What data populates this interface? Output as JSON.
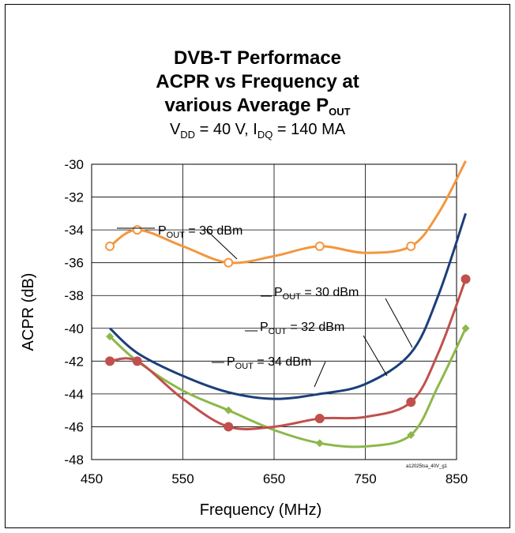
{
  "chart_data": {
    "type": "line",
    "title_lines": [
      "DVB-T Performace",
      "ACPR vs Frequency at",
      "various Average P"
    ],
    "title_sub": "OUT",
    "subtitle": {
      "vdd_main": "V",
      "vdd_sub": "DD",
      "vdd_value": " = 40 V, I",
      "idq_sub": "DQ",
      "idq_value": " = 140 MA"
    },
    "xlabel": "Frequency (MHz)",
    "ylabel": "ACPR (dB)",
    "xlim": [
      450,
      850
    ],
    "ylim": [
      -48,
      -30
    ],
    "x_ticks": [
      450,
      550,
      650,
      750,
      850
    ],
    "x_tick_labels": [
      "450",
      "550",
      "650",
      "750",
      "850"
    ],
    "y_ticks": [
      -30,
      -32,
      -34,
      -36,
      -38,
      -40,
      -42,
      -44,
      -46,
      -48
    ],
    "y_tick_labels": [
      "-30",
      "-32",
      "-34",
      "-36",
      "-38",
      "-40",
      "-42",
      "-44",
      "-46",
      "-48"
    ],
    "grid": true,
    "watermark": "a12025tsa_40V_g1",
    "series": [
      {
        "name": "36 dBm",
        "color": "#f3973e",
        "marker": "open-circle",
        "points": [
          [
            470,
            -35
          ],
          [
            500,
            -34
          ],
          [
            600,
            -36
          ],
          [
            700,
            -35
          ],
          [
            800,
            -35
          ]
        ],
        "curve": [
          [
            470,
            -35
          ],
          [
            500,
            -34
          ],
          [
            550,
            -35
          ],
          [
            600,
            -36
          ],
          [
            650,
            -35.6
          ],
          [
            700,
            -35
          ],
          [
            750,
            -35.4
          ],
          [
            800,
            -35
          ],
          [
            830,
            -33
          ],
          [
            860,
            -29.8
          ]
        ]
      },
      {
        "name": "30 dBm",
        "color": "#1b3f7a",
        "marker": "none",
        "points": [],
        "curve": [
          [
            470,
            -40
          ],
          [
            500,
            -41.5
          ],
          [
            550,
            -42.9
          ],
          [
            600,
            -43.9
          ],
          [
            650,
            -44.3
          ],
          [
            700,
            -44
          ],
          [
            750,
            -43.4
          ],
          [
            800,
            -41.5
          ],
          [
            830,
            -38
          ],
          [
            860,
            -33
          ]
        ]
      },
      {
        "name": "32 dBm",
        "color": "#c0504d",
        "marker": "filled-circle",
        "points": [
          [
            470,
            -42
          ],
          [
            500,
            -42
          ],
          [
            600,
            -46
          ],
          [
            700,
            -45.5
          ],
          [
            800,
            -44.5
          ],
          [
            860,
            -37
          ]
        ],
        "curve": [
          [
            470,
            -42
          ],
          [
            500,
            -42
          ],
          [
            550,
            -44.3
          ],
          [
            600,
            -46
          ],
          [
            650,
            -46
          ],
          [
            700,
            -45.5
          ],
          [
            750,
            -45.4
          ],
          [
            800,
            -44.5
          ],
          [
            830,
            -41.5
          ],
          [
            860,
            -37
          ]
        ]
      },
      {
        "name": "34 dBm",
        "color": "#8db84a",
        "marker": "filled-diamond",
        "points": [
          [
            470,
            -40.5
          ],
          [
            500,
            -42
          ],
          [
            600,
            -45
          ],
          [
            700,
            -47
          ],
          [
            800,
            -46.5
          ],
          [
            860,
            -40
          ]
        ],
        "curve": [
          [
            470,
            -40.5
          ],
          [
            500,
            -42
          ],
          [
            550,
            -43.8
          ],
          [
            600,
            -45
          ],
          [
            650,
            -46.2
          ],
          [
            700,
            -47
          ],
          [
            750,
            -47.2
          ],
          [
            800,
            -46.5
          ],
          [
            830,
            -43.5
          ],
          [
            860,
            -40
          ]
        ]
      }
    ],
    "annotations": [
      {
        "series": "36 dBm",
        "label_main": "P",
        "label_sub": "OUT",
        "label_value": " = 36 dBm"
      },
      {
        "series": "30 dBm",
        "label_main": "P",
        "label_sub": "OUT",
        "label_value": " = 30 dBm"
      },
      {
        "series": "32 dBm",
        "label_main": "P",
        "label_sub": "OUT",
        "label_value": " = 32 dBm"
      },
      {
        "series": "34 dBm",
        "label_main": "P",
        "label_sub": "OUT",
        "label_value": " = 34 dBm"
      }
    ]
  }
}
